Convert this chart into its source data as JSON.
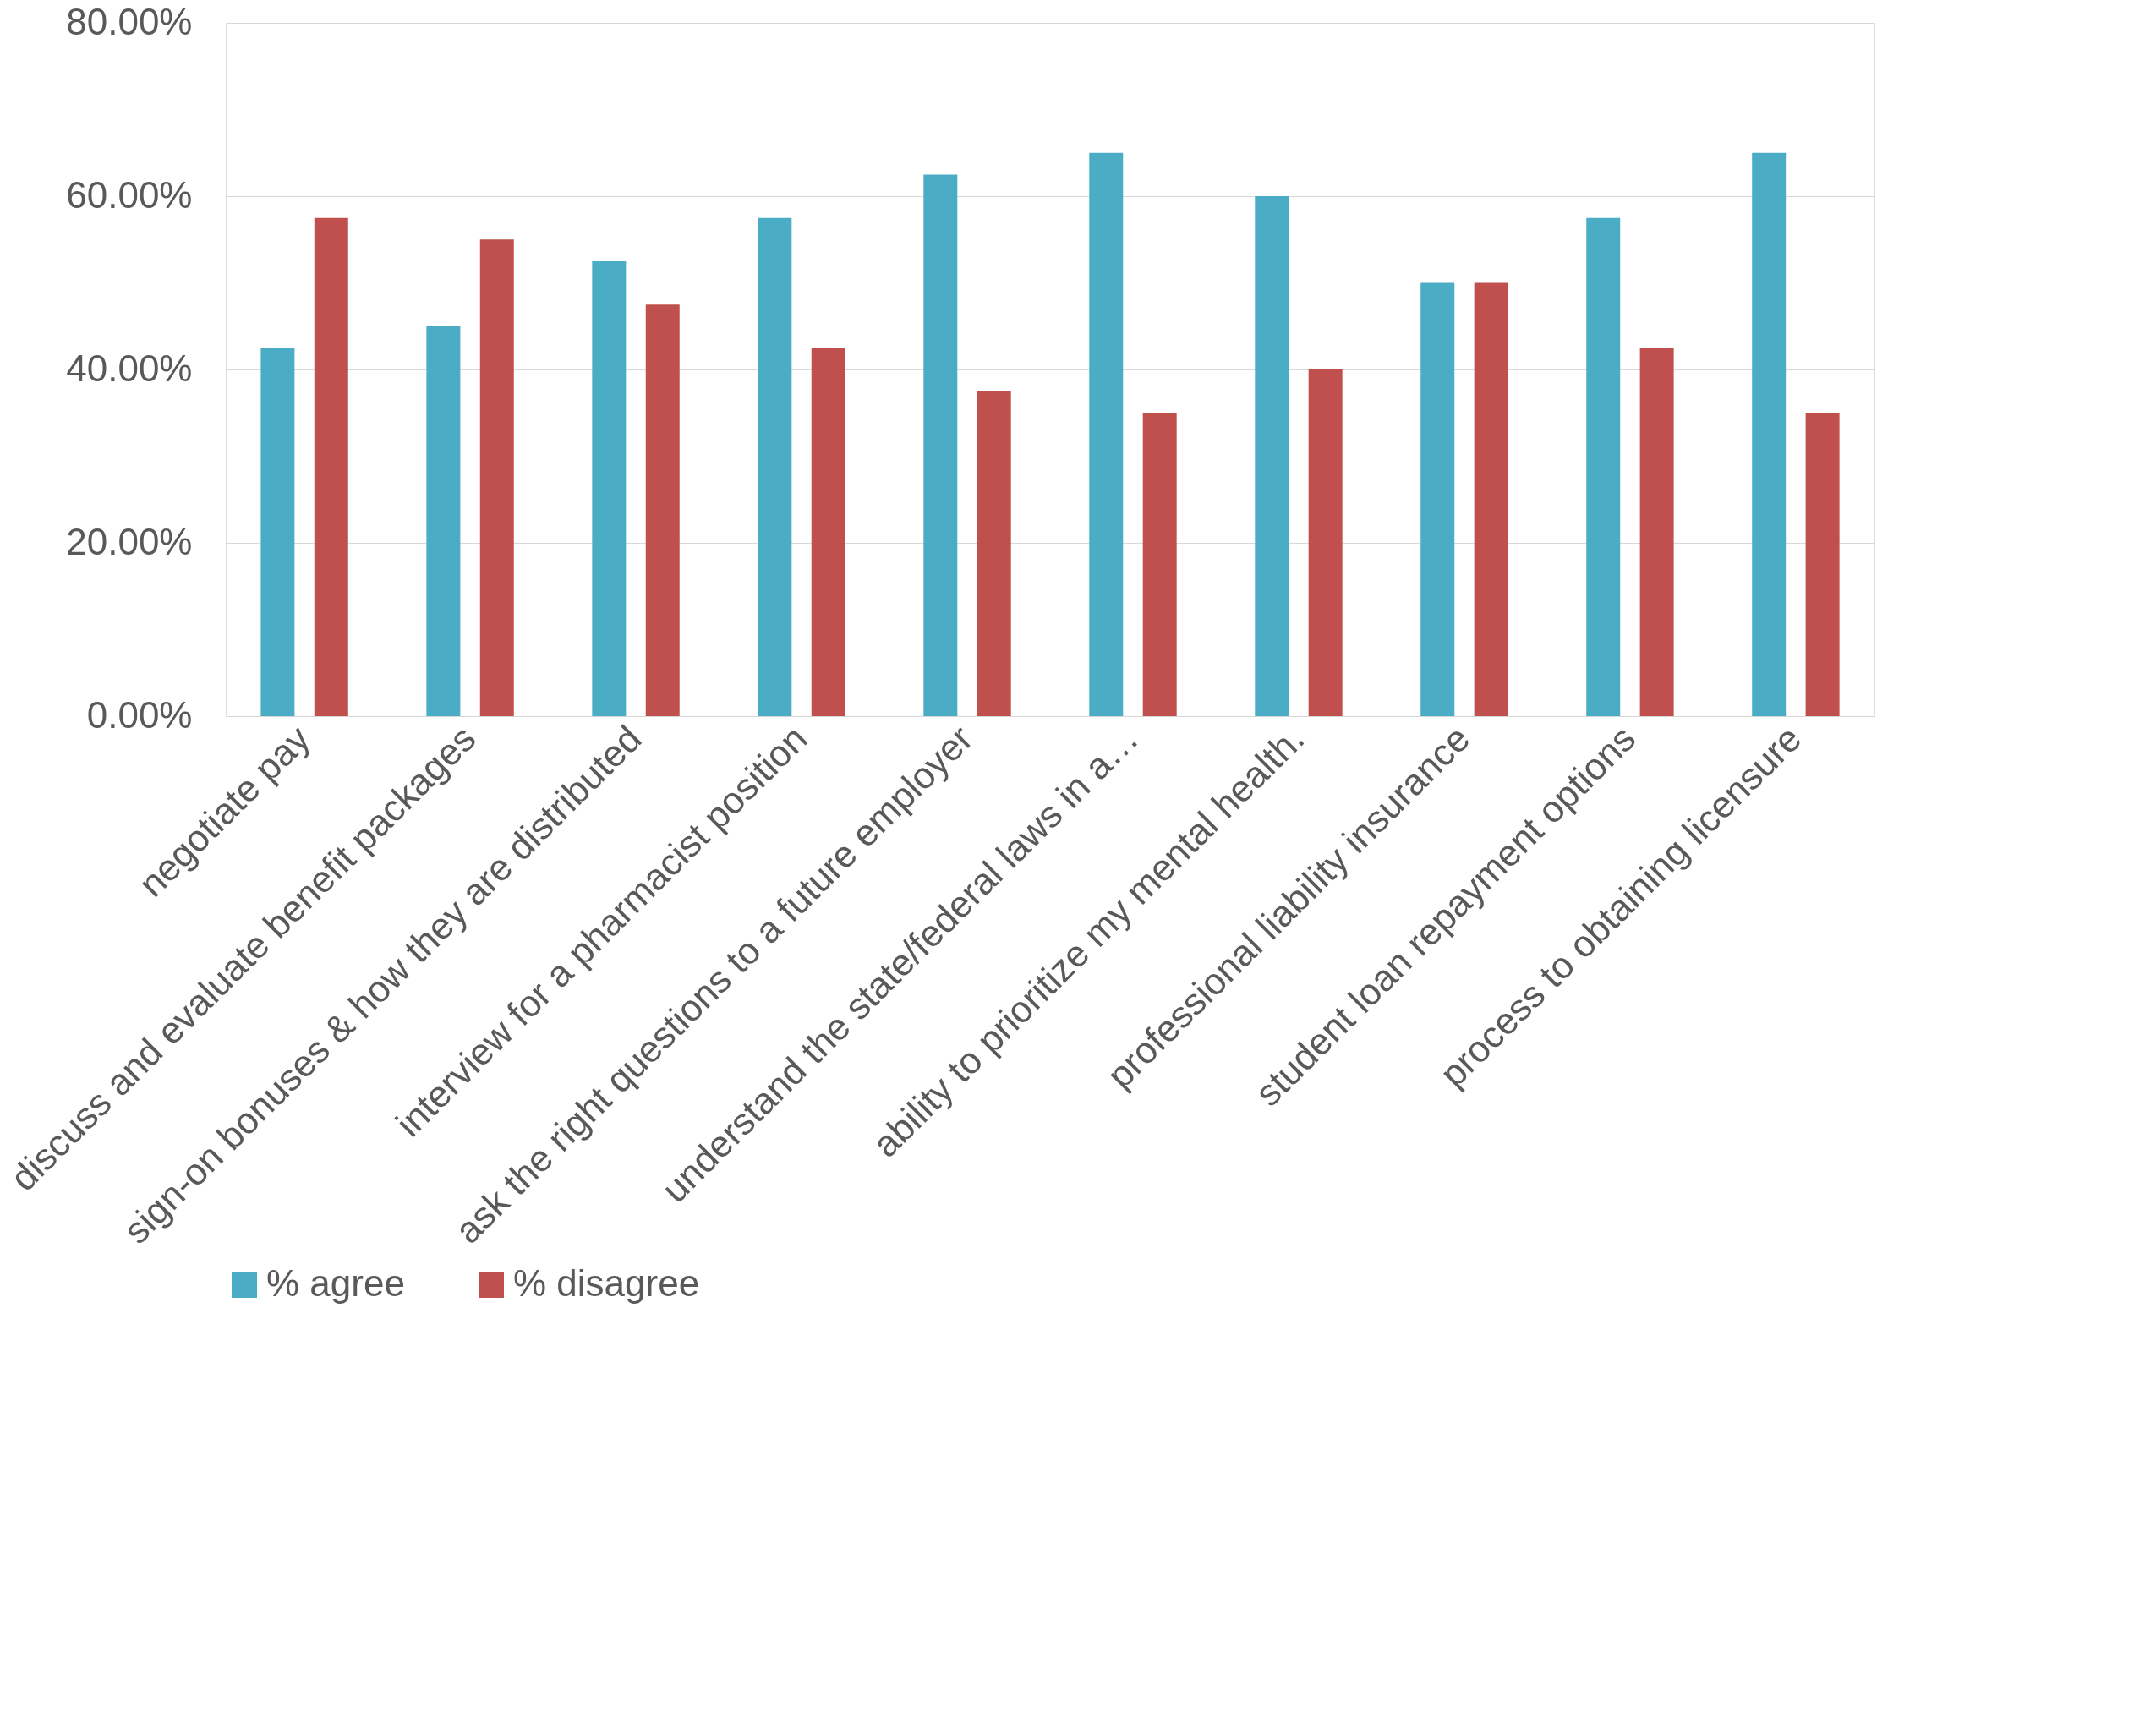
{
  "chart_data": {
    "type": "bar",
    "categories": [
      "negotiate pay",
      "discuss and evaluate benefit packages",
      "sign-on bonuses & how they are distributed",
      "interview for a pharmacist position",
      "ask the right questions to a future employer",
      "understand the state/federal laws in a…",
      "ability to prioritize my mental health.",
      "professional liability insurance",
      "student loan repayment options",
      "process to obtaining licensure"
    ],
    "series": [
      {
        "name": "% agree",
        "color": "#4bacc6",
        "values": [
          42.5,
          45,
          52.5,
          57.5,
          62.5,
          65,
          60,
          50,
          57.5,
          65
        ]
      },
      {
        "name": "% disagree",
        "color": "#c0504d",
        "values": [
          57.5,
          55,
          47.5,
          42.5,
          37.5,
          35,
          40,
          50,
          42.5,
          35
        ]
      }
    ],
    "ylim": [
      0,
      80
    ],
    "yticks": [
      {
        "value": 0,
        "label": "0.00%"
      },
      {
        "value": 20,
        "label": "20.00%"
      },
      {
        "value": 40,
        "label": "40.00%"
      },
      {
        "value": 60,
        "label": "60.00%"
      },
      {
        "value": 80,
        "label": "80.00%"
      }
    ],
    "grid": "y",
    "legend": "bottom"
  }
}
